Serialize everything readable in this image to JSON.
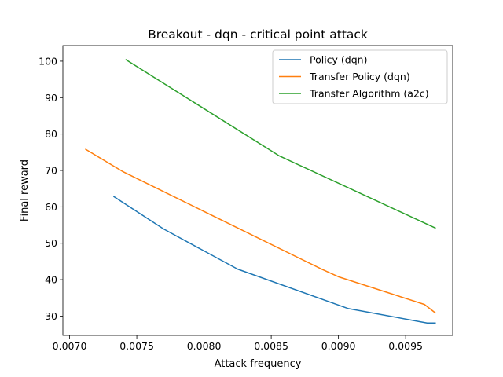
{
  "chart_data": {
    "type": "line",
    "title": "Breakout - dqn - critical point attack",
    "xlabel": "Attack frequency",
    "ylabel": "Final reward",
    "xlim": [
      0.00695,
      0.00985
    ],
    "ylim": [
      24.7,
      104.3
    ],
    "xticks": [
      0.007,
      0.0075,
      0.008,
      0.0085,
      0.009,
      0.0095
    ],
    "xtick_labels": [
      "0.0070",
      "0.0075",
      "0.0080",
      "0.0085",
      "0.0090",
      "0.0095"
    ],
    "yticks": [
      30,
      40,
      50,
      60,
      70,
      80,
      90,
      100
    ],
    "ytick_labels": [
      "30",
      "40",
      "50",
      "60",
      "70",
      "80",
      "90",
      "100"
    ],
    "grid": false,
    "legend_position": "top-right",
    "series": [
      {
        "name": "Policy (dqn)",
        "color": "#1f77b4",
        "points": [
          [
            0.00733,
            62.8
          ],
          [
            0.0077,
            53.9
          ],
          [
            0.00825,
            42.9
          ],
          [
            0.00907,
            32.1
          ],
          [
            0.00966,
            28.1
          ],
          [
            0.00972,
            28.1
          ]
        ]
      },
      {
        "name": "Transfer Policy (dqn)",
        "color": "#ff7f0e",
        "points": [
          [
            0.00712,
            75.8
          ],
          [
            0.0074,
            69.6
          ],
          [
            0.00888,
            42.8
          ],
          [
            0.009,
            40.8
          ],
          [
            0.00964,
            33.2
          ],
          [
            0.00972,
            30.9
          ]
        ]
      },
      {
        "name": "Transfer Algorithm (a2c)",
        "color": "#2ca02c",
        "points": [
          [
            0.00742,
            100.4
          ],
          [
            0.0085,
            75.4
          ],
          [
            0.00856,
            74.0
          ],
          [
            0.00972,
            54.2
          ]
        ]
      }
    ]
  }
}
